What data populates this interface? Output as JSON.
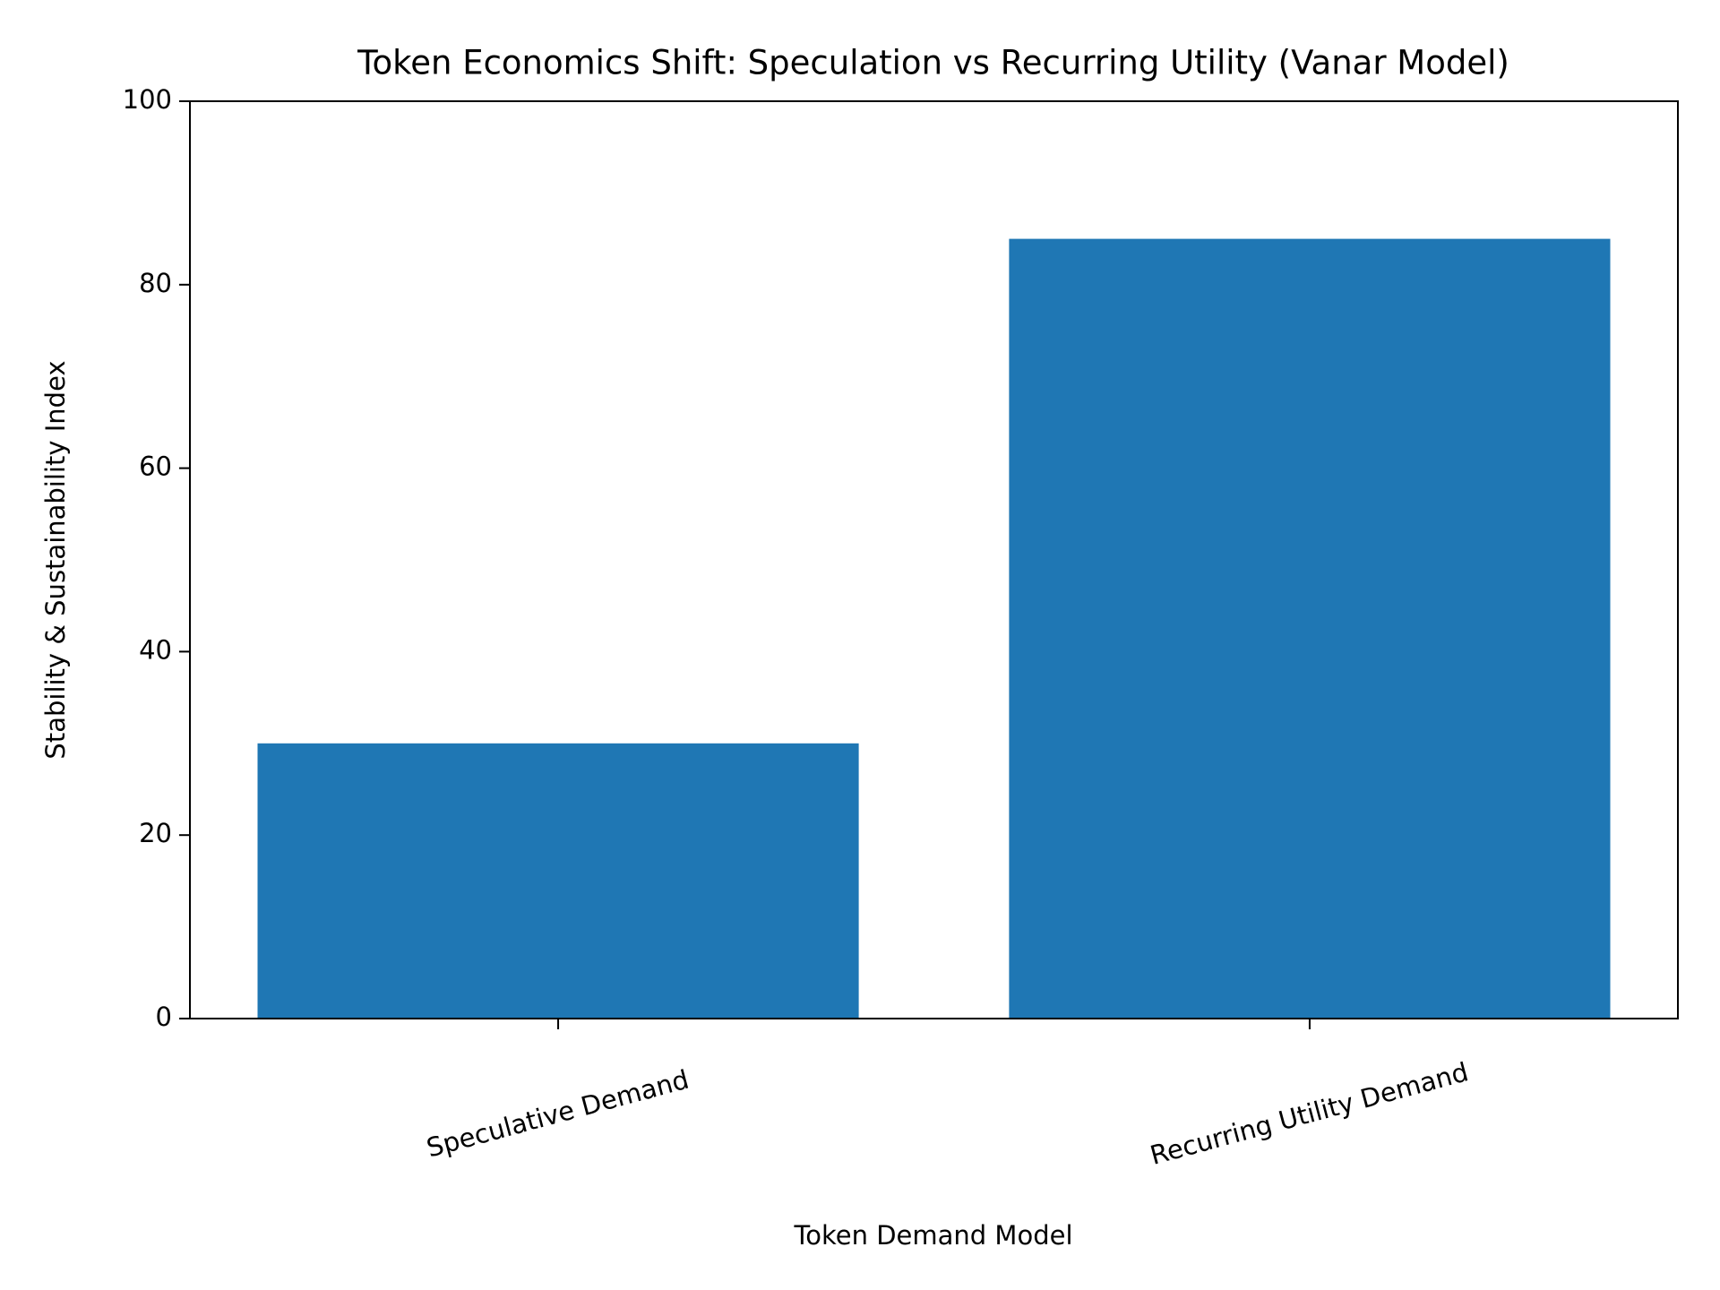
{
  "chart_data": {
    "type": "bar",
    "title": "Token Economics Shift: Speculation vs Recurring Utility (Vanar Model)",
    "x_label": "Token Demand Model",
    "y_label": "Stability & Sustainability Index",
    "categories": [
      "Speculative Demand",
      "Recurring Utility Demand"
    ],
    "values": [
      30,
      85
    ],
    "color": "#1f77b4",
    "ylim": [
      0,
      100
    ],
    "yticks": [
      0,
      20,
      40,
      60,
      80,
      100
    ],
    "grid": false
  }
}
